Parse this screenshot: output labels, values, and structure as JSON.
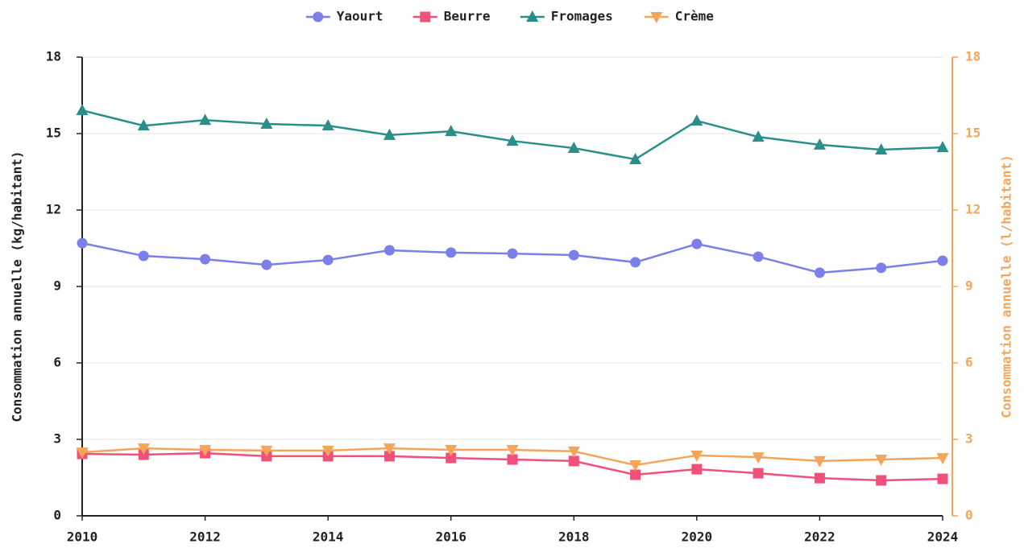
{
  "chart_data": {
    "type": "line",
    "x": [
      2010,
      2011,
      2012,
      2013,
      2014,
      2015,
      2016,
      2017,
      2018,
      2019,
      2020,
      2021,
      2022,
      2023,
      2024
    ],
    "xlim": [
      2010,
      2024
    ],
    "xticks": [
      2010,
      2012,
      2014,
      2016,
      2018,
      2020,
      2022,
      2024
    ],
    "ylabel": "Consommation annuelle (kg/habitant)",
    "y2label": "Consommation annuelle (l/habitant)",
    "ylim": [
      0,
      18
    ],
    "yticks": [
      0,
      3,
      6,
      9,
      12,
      15,
      18
    ],
    "y2lim": [
      0,
      18
    ],
    "y2ticks": [
      0,
      3,
      6,
      9,
      12,
      15,
      18
    ],
    "y2color": "#f5a55a",
    "grid": true,
    "legend": "top",
    "series": [
      {
        "name": "Yaourt",
        "color": "#7b7fe8",
        "marker": "circle",
        "values": [
          10.7,
          10.2,
          10.07,
          9.85,
          10.04,
          10.42,
          10.33,
          10.29,
          10.23,
          9.95,
          10.67,
          10.17,
          9.54,
          9.73,
          10.01
        ]
      },
      {
        "name": "Beurre",
        "color": "#f0507a",
        "marker": "square",
        "values": [
          2.43,
          2.4,
          2.46,
          2.34,
          2.34,
          2.34,
          2.27,
          2.21,
          2.15,
          1.61,
          1.83,
          1.67,
          1.48,
          1.39,
          1.45
        ]
      },
      {
        "name": "Fromages",
        "color": "#2a8f8a",
        "marker": "triangle-up",
        "values": [
          15.91,
          15.31,
          15.53,
          15.38,
          15.31,
          14.94,
          15.09,
          14.71,
          14.43,
          13.99,
          15.5,
          14.87,
          14.56,
          14.37,
          14.46
        ]
      },
      {
        "name": "Crème",
        "color": "#f5a55a",
        "marker": "triangle-down",
        "axis": "y2",
        "values": [
          2.49,
          2.65,
          2.59,
          2.56,
          2.56,
          2.65,
          2.59,
          2.59,
          2.53,
          1.99,
          2.37,
          2.3,
          2.15,
          2.21,
          2.27
        ]
      }
    ]
  }
}
